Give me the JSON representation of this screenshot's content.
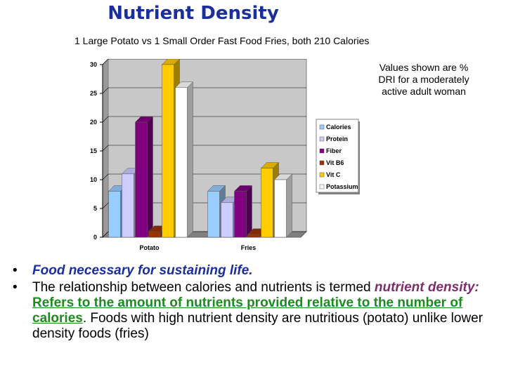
{
  "slide": {
    "title": "Nutrient Density",
    "subtitle": "1 Large Potato vs 1 Small Order Fast Food Fries, both 210 Calories",
    "note": "Values shown are % DRI for a moderately active adult woman"
  },
  "bullets": {
    "b1": "Food necessary for sustaining life.",
    "b2_pre": "The relationship between calories and nutrients is termed ",
    "b2_term": "nutrient density:",
    "b2_def": "Refers to the amount of nutrients provided relative to the number of calories",
    "b2_post": ". Foods with high nutrient density are nutritious (potato) unlike lower density foods (fries)"
  },
  "chart_data": {
    "type": "bar",
    "categories": [
      "Potato",
      "Fries"
    ],
    "series": [
      {
        "name": "Calories",
        "values": [
          8,
          8
        ],
        "color": "#99ccff"
      },
      {
        "name": "Protein",
        "values": [
          11,
          6
        ],
        "color": "#ccccff"
      },
      {
        "name": "Fiber",
        "values": [
          20,
          8
        ],
        "color": "#800080"
      },
      {
        "name": "Vit B6",
        "values": [
          1,
          0.5
        ],
        "color": "#993300"
      },
      {
        "name": "Vit C",
        "values": [
          30,
          12
        ],
        "color": "#ffcc00"
      },
      {
        "name": "Potassium",
        "values": [
          26,
          10
        ],
        "color": "#ffffff"
      }
    ],
    "ylim": [
      0,
      30
    ],
    "yticks": [
      0,
      5,
      10,
      15,
      20,
      25,
      30
    ],
    "grid": true,
    "legend": "right"
  }
}
